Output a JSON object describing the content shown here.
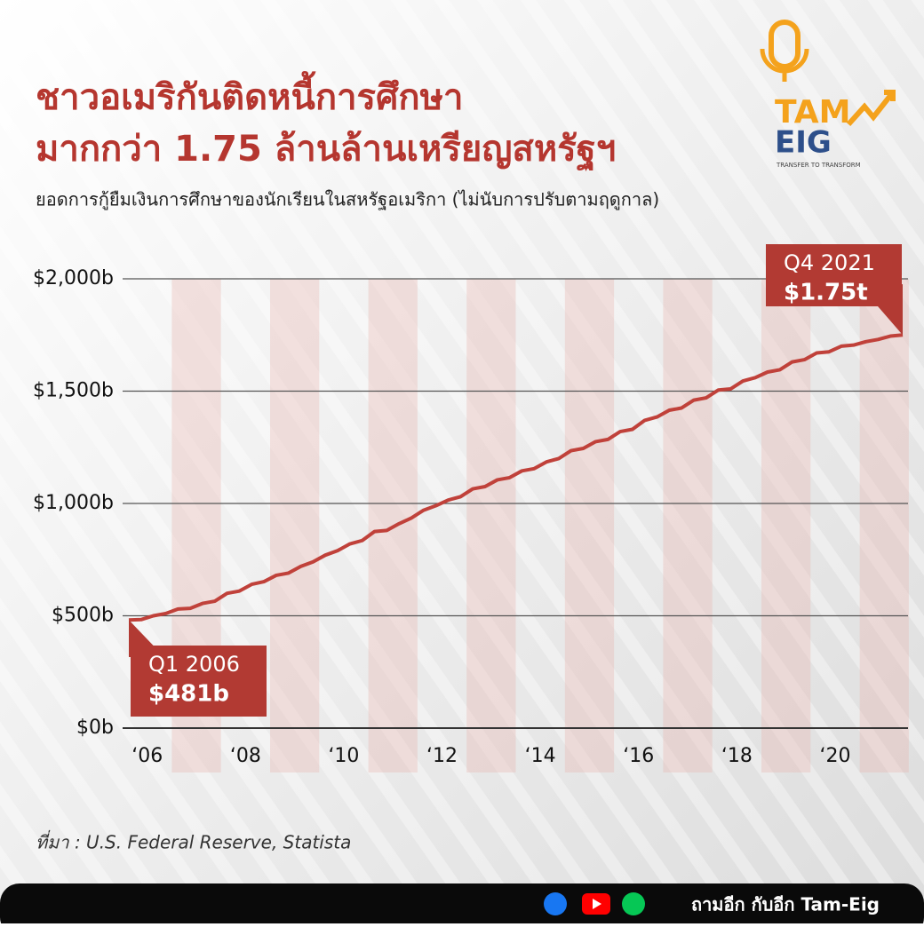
{
  "chart_data": {
    "type": "line",
    "title_lines": [
      "ชาวอเมริกันติดหนี้การศึกษา",
      "มากกว่า 1.75 ล้านล้านเหรียญสหรัฐฯ"
    ],
    "subtitle": "ยอดการกู้ยืมเงินการศึกษาของนักเรียนในสหรัฐอเมริกา (ไม่นับการปรับตามฤดูกาล)",
    "source": "ที่มา : U.S. Federal Reserve, Statista",
    "brand": {
      "logo_top": "TAM",
      "logo_bottom": "EIG",
      "tagline": "TRANSFER TO TRANSFORM",
      "footer": "ถามอีก กับอีก Tam-Eig"
    },
    "categories": [
      "Q1 2006",
      null,
      null,
      null,
      null,
      null,
      null,
      null,
      null,
      null,
      null,
      null,
      null,
      null,
      null,
      null,
      null,
      null,
      null,
      null,
      null,
      null,
      null,
      null,
      null,
      null,
      null,
      null,
      null,
      null,
      null,
      null,
      null,
      null,
      null,
      null,
      null,
      null,
      null,
      null,
      null,
      null,
      null,
      null,
      null,
      null,
      null,
      null,
      null,
      null,
      null,
      null,
      null,
      null,
      null,
      null,
      null,
      null,
      null,
      null,
      null,
      null,
      null,
      "Q4 2021"
    ],
    "x_tick_labels": [
      "‘06",
      "‘08",
      "‘10",
      "‘12",
      "‘14",
      "‘16",
      "‘18",
      "‘20"
    ],
    "series": [
      {
        "name": "Student loans",
        "color": "#c0413a",
        "values": [
          481,
          483,
          500,
          510,
          530,
          533,
          555,
          565,
          600,
          610,
          640,
          652,
          680,
          690,
          720,
          740,
          770,
          790,
          820,
          835,
          875,
          880,
          910,
          935,
          970,
          990,
          1015,
          1030,
          1065,
          1075,
          1105,
          1115,
          1145,
          1155,
          1185,
          1200,
          1235,
          1245,
          1275,
          1285,
          1320,
          1330,
          1370,
          1385,
          1415,
          1425,
          1460,
          1470,
          1505,
          1510,
          1545,
          1560,
          1585,
          1595,
          1630,
          1640,
          1670,
          1675,
          1700,
          1705,
          1720,
          1730,
          1745,
          1750
        ],
        "value_labels": [
          "$481b",
          null,
          null,
          null,
          null,
          null,
          null,
          null,
          null,
          null,
          null,
          null,
          null,
          null,
          null,
          null,
          null,
          null,
          null,
          null,
          null,
          null,
          null,
          null,
          null,
          null,
          null,
          null,
          null,
          null,
          null,
          null,
          null,
          null,
          null,
          null,
          null,
          null,
          null,
          null,
          null,
          null,
          null,
          null,
          null,
          null,
          null,
          null,
          null,
          null,
          null,
          null,
          null,
          null,
          null,
          null,
          null,
          null,
          null,
          null,
          null,
          null,
          null,
          "$1.75t"
        ]
      }
    ],
    "ylim": [
      0,
      2000
    ],
    "yticks": [
      {
        "value": 0,
        "label": "$0b"
      },
      {
        "value": 500,
        "label": "$500b"
      },
      {
        "value": 1000,
        "label": "$1,000b"
      },
      {
        "value": 1500,
        "label": "$1,500b"
      },
      {
        "value": 2000,
        "label": "$2,000b"
      }
    ],
    "grid": true
  }
}
